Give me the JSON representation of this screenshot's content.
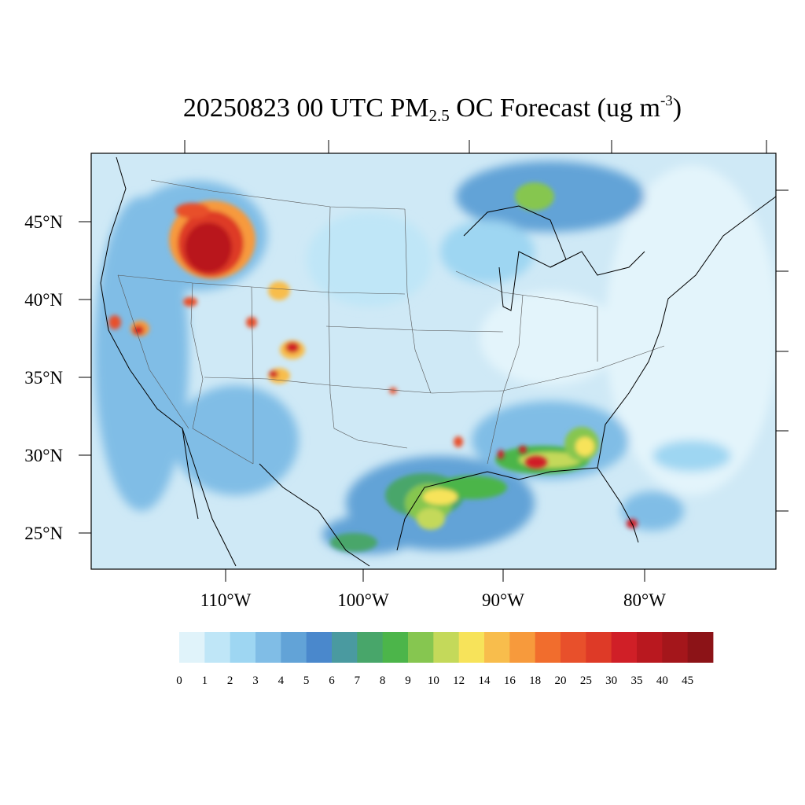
{
  "title": {
    "date": "20250823",
    "time": "00 UTC",
    "species": "PM",
    "species_sub": "2.5",
    "species_tail": "OC Forecast (ug m",
    "unit_exp": "-3",
    "close": ")"
  },
  "axes": {
    "lat_labels": [
      "45°N",
      "40°N",
      "35°N",
      "30°N",
      "25°N"
    ],
    "lon_labels": [
      "110°W",
      "100°W",
      "90°W",
      "80°W"
    ]
  },
  "colorbar": {
    "colors": [
      "#e0f3fa",
      "#bfe6f7",
      "#9ed6f2",
      "#80bde6",
      "#62a3d7",
      "#4a88cc",
      "#4a9aa0",
      "#48a66a",
      "#4cb54a",
      "#86c650",
      "#c4d95a",
      "#f7e35a",
      "#f8bd4c",
      "#f79a3c",
      "#f16d2d",
      "#e8502b",
      "#de3a27",
      "#d01f27",
      "#b9181f",
      "#a4161b",
      "#8c1317"
    ],
    "labels": [
      "0",
      "1",
      "2",
      "3",
      "4",
      "5",
      "6",
      "7",
      "8",
      "9",
      "10",
      "12",
      "14",
      "16",
      "18",
      "20",
      "25",
      "30",
      "35",
      "40",
      "45"
    ]
  },
  "colors": {
    "background": "#cfe9f6",
    "border": "#000000"
  }
}
